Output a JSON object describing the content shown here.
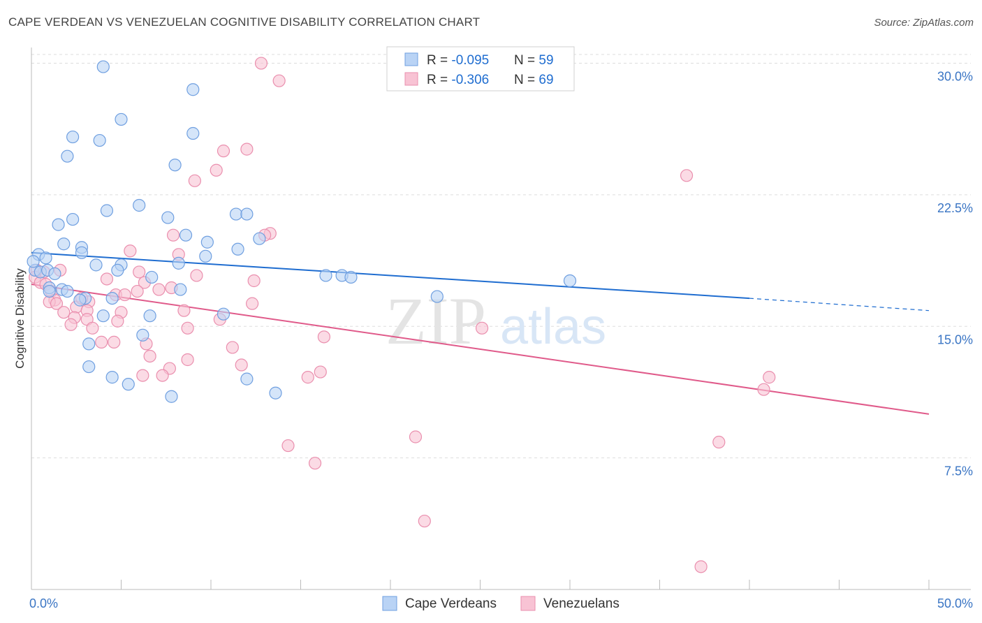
{
  "title": "CAPE VERDEAN VS VENEZUELAN COGNITIVE DISABILITY CORRELATION CHART",
  "source": "Source: ZipAtlas.com",
  "watermark": {
    "zip": "ZIP",
    "atlas": "atlas"
  },
  "colors": {
    "blue": "#1f6dd0",
    "blue_fill": "#b9d3f5",
    "blue_stroke": "#6f9fe0",
    "pink": "#e05a8a",
    "pink_fill": "#f8c3d4",
    "pink_stroke": "#ea8fae",
    "tick_text": "#3a75c4",
    "grid": "#dddddd"
  },
  "legend": {
    "rows": [
      {
        "r_label": "R = ",
        "r_value": "-0.095",
        "n_label": "N = ",
        "n_value": "59"
      },
      {
        "r_label": "R = ",
        "r_value": "-0.306",
        "n_label": "N = ",
        "n_value": "69"
      }
    ]
  },
  "chart_data": {
    "type": "scatter",
    "title": "CAPE VERDEAN VS VENEZUELAN COGNITIVE DISABILITY CORRELATION CHART",
    "xlabel": "",
    "ylabel": "Cognitive Disability",
    "xlim": [
      0,
      50
    ],
    "ylim": [
      0,
      30.5
    ],
    "x_tick_labels": [
      "0.0%",
      "50.0%"
    ],
    "y_ticks": [
      7.5,
      15.0,
      22.5,
      30.0
    ],
    "y_tick_labels": [
      "7.5%",
      "15.0%",
      "22.5%",
      "30.0%"
    ],
    "grid": true,
    "legend_position": "top-center",
    "series": [
      {
        "name": "Cape Verdeans",
        "trend": {
          "x0": 0,
          "y0": 19.2,
          "x1": 40,
          "y1": 16.6,
          "dash_x1": 50,
          "dash_y1": 15.9
        },
        "points": [
          [
            4.0,
            29.8
          ],
          [
            9.0,
            28.5
          ],
          [
            5.0,
            26.8
          ],
          [
            2.3,
            25.8
          ],
          [
            3.8,
            25.6
          ],
          [
            9.0,
            26.0
          ],
          [
            2.0,
            24.7
          ],
          [
            8.0,
            24.2
          ],
          [
            4.2,
            21.6
          ],
          [
            6.0,
            21.9
          ],
          [
            7.6,
            21.2
          ],
          [
            11.4,
            21.4
          ],
          [
            12.0,
            21.4
          ],
          [
            2.3,
            21.1
          ],
          [
            1.5,
            20.8
          ],
          [
            8.6,
            20.2
          ],
          [
            12.7,
            20.0
          ],
          [
            1.8,
            19.7
          ],
          [
            2.8,
            19.5
          ],
          [
            9.8,
            19.8
          ],
          [
            11.5,
            19.4
          ],
          [
            2.8,
            19.2
          ],
          [
            0.4,
            19.1
          ],
          [
            0.8,
            18.9
          ],
          [
            9.7,
            19.0
          ],
          [
            3.6,
            18.5
          ],
          [
            5.0,
            18.5
          ],
          [
            8.2,
            18.6
          ],
          [
            0.2,
            18.2
          ],
          [
            0.5,
            18.1
          ],
          [
            0.9,
            18.2
          ],
          [
            4.8,
            18.2
          ],
          [
            1.3,
            18.0
          ],
          [
            6.7,
            17.8
          ],
          [
            16.4,
            17.9
          ],
          [
            17.3,
            17.9
          ],
          [
            17.8,
            17.8
          ],
          [
            30.0,
            17.6
          ],
          [
            1.0,
            17.2
          ],
          [
            1.7,
            17.1
          ],
          [
            8.3,
            17.1
          ],
          [
            1.0,
            17.0
          ],
          [
            2.0,
            17.0
          ],
          [
            22.6,
            16.7
          ],
          [
            3.0,
            16.6
          ],
          [
            4.5,
            16.6
          ],
          [
            2.7,
            16.5
          ],
          [
            4.0,
            15.6
          ],
          [
            6.6,
            15.6
          ],
          [
            10.7,
            15.7
          ],
          [
            6.2,
            14.5
          ],
          [
            3.2,
            14.0
          ],
          [
            3.2,
            12.7
          ],
          [
            4.5,
            12.1
          ],
          [
            5.4,
            11.7
          ],
          [
            12.0,
            12.0
          ],
          [
            7.8,
            11.0
          ],
          [
            13.6,
            11.2
          ],
          [
            0.1,
            18.7
          ]
        ]
      },
      {
        "name": "Venezuelans",
        "trend": {
          "x0": 0,
          "y0": 17.4,
          "x1": 50,
          "y1": 10.0
        },
        "points": [
          [
            12.8,
            30.0
          ],
          [
            13.8,
            29.0
          ],
          [
            10.7,
            25.0
          ],
          [
            12.0,
            25.1
          ],
          [
            10.3,
            23.9
          ],
          [
            36.5,
            23.6
          ],
          [
            9.1,
            23.3
          ],
          [
            13.3,
            20.3
          ],
          [
            13.0,
            20.2
          ],
          [
            7.9,
            20.2
          ],
          [
            5.5,
            19.3
          ],
          [
            8.2,
            19.1
          ],
          [
            0.3,
            18.2
          ],
          [
            0.7,
            18.1
          ],
          [
            1.6,
            18.2
          ],
          [
            6.0,
            18.1
          ],
          [
            9.2,
            17.9
          ],
          [
            0.2,
            17.8
          ],
          [
            4.2,
            17.7
          ],
          [
            12.4,
            17.6
          ],
          [
            0.5,
            17.5
          ],
          [
            0.8,
            17.4
          ],
          [
            6.3,
            17.5
          ],
          [
            1.1,
            17.0
          ],
          [
            7.8,
            17.2
          ],
          [
            5.9,
            17.0
          ],
          [
            7.1,
            17.1
          ],
          [
            1.3,
            16.5
          ],
          [
            4.7,
            16.8
          ],
          [
            5.2,
            16.8
          ],
          [
            1.0,
            16.4
          ],
          [
            1.4,
            16.3
          ],
          [
            2.5,
            16.1
          ],
          [
            3.2,
            16.4
          ],
          [
            12.3,
            16.3
          ],
          [
            3.1,
            15.9
          ],
          [
            5.0,
            15.8
          ],
          [
            1.8,
            15.8
          ],
          [
            8.5,
            15.9
          ],
          [
            2.4,
            15.5
          ],
          [
            3.1,
            15.4
          ],
          [
            4.8,
            15.3
          ],
          [
            10.5,
            15.4
          ],
          [
            2.2,
            15.1
          ],
          [
            8.7,
            14.9
          ],
          [
            25.1,
            14.9
          ],
          [
            3.4,
            14.9
          ],
          [
            16.3,
            14.4
          ],
          [
            4.6,
            14.1
          ],
          [
            3.9,
            14.1
          ],
          [
            6.4,
            14.0
          ],
          [
            11.2,
            13.8
          ],
          [
            6.6,
            13.3
          ],
          [
            8.7,
            13.1
          ],
          [
            11.7,
            12.8
          ],
          [
            7.7,
            12.6
          ],
          [
            6.2,
            12.2
          ],
          [
            16.1,
            12.4
          ],
          [
            15.4,
            12.1
          ],
          [
            41.1,
            12.1
          ],
          [
            40.8,
            11.4
          ],
          [
            7.3,
            12.2
          ],
          [
            21.4,
            8.7
          ],
          [
            14.3,
            8.2
          ],
          [
            38.3,
            8.4
          ],
          [
            15.8,
            7.2
          ],
          [
            21.9,
            3.9
          ],
          [
            37.3,
            1.3
          ],
          [
            2.8,
            16.6
          ]
        ]
      }
    ]
  }
}
